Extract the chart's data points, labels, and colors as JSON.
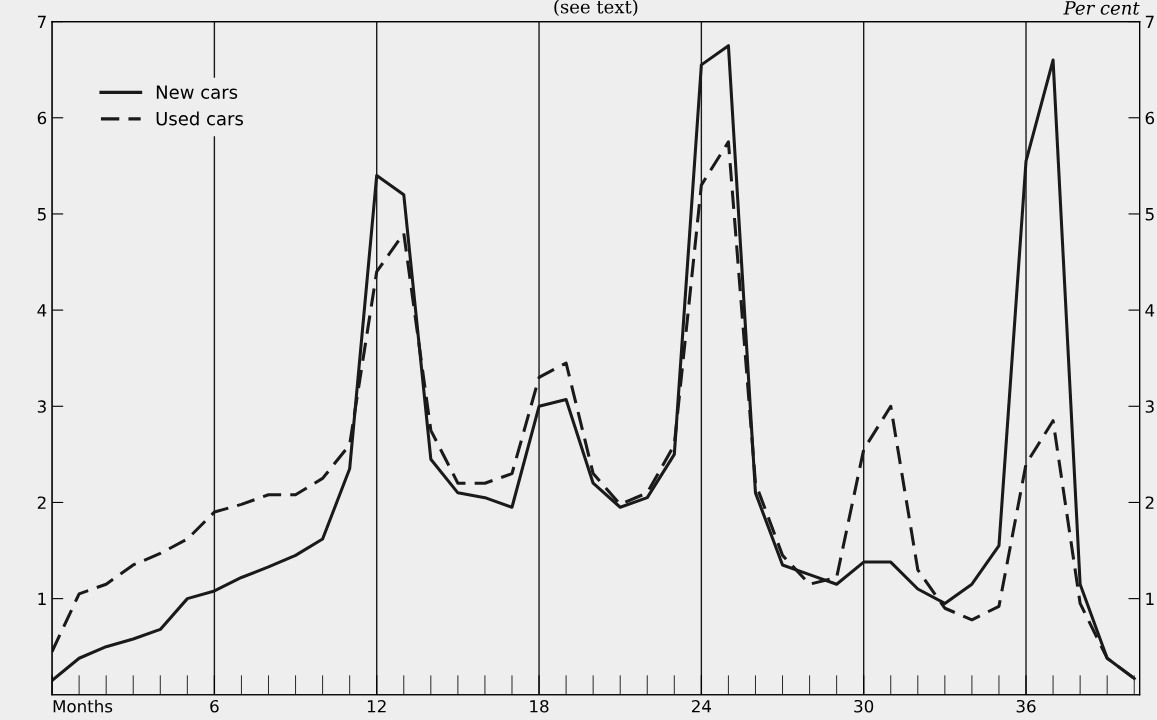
{
  "chart_data": {
    "type": "line",
    "title": "(see text)",
    "y2label": "Per cent",
    "x": [
      0,
      1,
      2,
      3,
      4,
      5,
      6,
      7,
      8,
      9,
      10,
      11,
      12,
      13,
      14,
      15,
      16,
      17,
      18,
      19,
      20,
      21,
      22,
      23,
      24,
      25,
      26,
      27,
      28,
      29,
      30,
      31,
      32,
      33,
      34,
      35,
      36,
      37,
      38,
      39,
      40
    ],
    "series": [
      {
        "name": "New cars",
        "color": "#1a1a1a",
        "line_style": "solid",
        "values": [
          0.15,
          0.38,
          0.5,
          0.58,
          0.68,
          1.0,
          1.08,
          1.22,
          1.33,
          1.45,
          1.62,
          2.35,
          5.4,
          5.2,
          2.45,
          2.1,
          2.05,
          1.95,
          3.0,
          3.07,
          2.2,
          1.95,
          2.05,
          2.5,
          6.55,
          6.75,
          2.1,
          1.35,
          1.25,
          1.15,
          1.38,
          1.38,
          1.1,
          0.95,
          1.15,
          1.55,
          5.55,
          6.6,
          1.15,
          0.38,
          0.17
        ]
      },
      {
        "name": "Used cars",
        "color": "#1a1a1a",
        "line_style": "dashed",
        "values": [
          0.45,
          1.05,
          1.15,
          1.35,
          1.47,
          1.62,
          1.9,
          1.98,
          2.08,
          2.08,
          2.25,
          2.6,
          4.4,
          4.8,
          2.75,
          2.2,
          2.2,
          2.3,
          3.3,
          3.45,
          2.3,
          1.98,
          2.1,
          2.6,
          5.3,
          5.75,
          2.2,
          1.45,
          1.15,
          1.22,
          2.55,
          3.0,
          1.3,
          0.9,
          0.78,
          0.92,
          2.4,
          2.85,
          0.95,
          0.38,
          0.17
        ]
      }
    ],
    "xlim": [
      0,
      40.2
    ],
    "xticks": [
      {
        "value": 0,
        "label": "Months"
      },
      6,
      12,
      18,
      24,
      30,
      36
    ],
    "ylim": [
      0,
      7
    ],
    "yticks": [
      1,
      2,
      3,
      4,
      5,
      6,
      7
    ],
    "y2lim": [
      0,
      7
    ],
    "y2ticks": [
      1,
      2,
      3,
      4,
      5,
      6,
      7
    ],
    "grid": "x",
    "legend": "top left",
    "marker": "none"
  }
}
